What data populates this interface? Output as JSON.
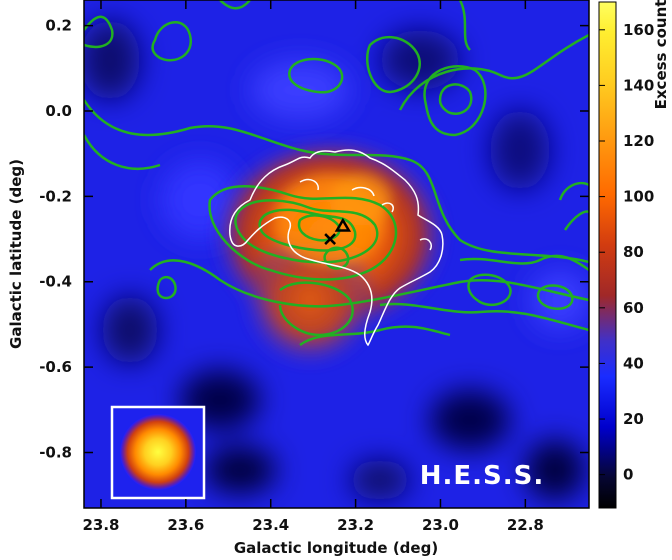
{
  "chart_data": {
    "type": "heatmap",
    "title": "",
    "xlabel": "Galactic longitude (deg)",
    "ylabel": "Galactic latitude (deg)",
    "xlim": [
      23.84,
      22.65
    ],
    "ylim": [
      -0.93,
      0.26
    ],
    "x_reversed": true,
    "x_ticks": [
      {
        "value": 23.8,
        "label": "23.8"
      },
      {
        "value": 23.6,
        "label": "23.6"
      },
      {
        "value": 23.4,
        "label": "23.4"
      },
      {
        "value": 23.2,
        "label": "23.2"
      },
      {
        "value": 23.0,
        "label": "23.0"
      },
      {
        "value": 22.8,
        "label": "22.8"
      }
    ],
    "y_ticks": [
      {
        "value": 0.2,
        "label": "0.2"
      },
      {
        "value": 0.0,
        "label": "0.0"
      },
      {
        "value": -0.2,
        "label": "-0.2"
      },
      {
        "value": -0.4,
        "label": "-0.4"
      },
      {
        "value": -0.6,
        "label": "-0.6"
      },
      {
        "value": -0.8,
        "label": "-0.8"
      }
    ],
    "colorbar": {
      "label": "Excess counts",
      "range": [
        -12,
        170
      ],
      "ticks": [
        {
          "value": 0,
          "label": "0"
        },
        {
          "value": 20,
          "label": "20"
        },
        {
          "value": 40,
          "label": "40"
        },
        {
          "value": 60,
          "label": "60"
        },
        {
          "value": 80,
          "label": "80"
        },
        {
          "value": 100,
          "label": "100"
        },
        {
          "value": 120,
          "label": "120"
        },
        {
          "value": 140,
          "label": "140"
        },
        {
          "value": 160,
          "label": "160"
        }
      ]
    },
    "emission_peak": {
      "l": 23.27,
      "b": -0.28,
      "peak_counts": 120
    },
    "markers": [
      {
        "symbol": "x",
        "l": 23.26,
        "b": -0.3
      },
      {
        "symbol": "triangle",
        "l": 23.23,
        "b": -0.27
      }
    ],
    "psf_inset_peak_counts": 160,
    "contours": {
      "white": "outline overlay around the emission region",
      "green": "contour lines"
    },
    "watermark": "H.E.S.S."
  }
}
